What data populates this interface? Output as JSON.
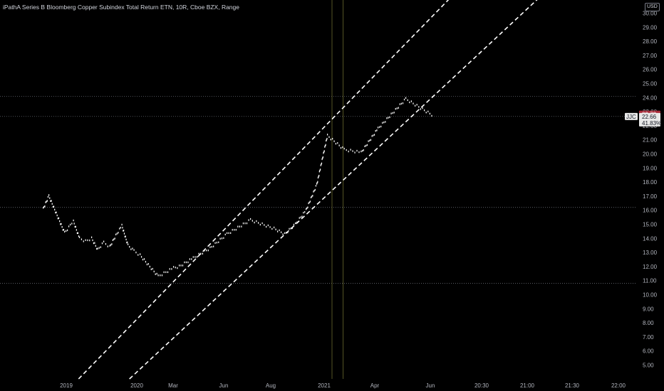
{
  "header": {
    "title": "iPathA Series B Bloomberg Copper Subindex Total Return ETN, 10R, Cboe BZX, Range",
    "currency": "USD"
  },
  "colors": {
    "background": "#000000",
    "price": "#ffffff",
    "channel": "#ffffff",
    "hline": "#787b86",
    "vline": "#6b6a2e",
    "badge_red": "#a62a38",
    "text": "#b2b5be"
  },
  "chart_data": {
    "type": "line",
    "title": "iPathA Series B Bloomberg Copper Subindex Total Return ETN, 10R, Cboe BZX, Range",
    "ylim": [
      4.5,
      30.5
    ],
    "y_ticks": [
      "5.00",
      "6.00",
      "7.00",
      "8.00",
      "9.00",
      "10.00",
      "11.00",
      "12.00",
      "13.00",
      "14.00",
      "15.00",
      "16.00",
      "17.00",
      "18.00",
      "19.00",
      "20.00",
      "21.00",
      "22.00",
      "23.00",
      "24.00",
      "25.00",
      "26.00",
      "27.00",
      "28.00",
      "29.00",
      "30.00"
    ],
    "x_ticks": [
      "2019",
      "2020",
      "Mar",
      "Jun",
      "Aug",
      "2021",
      "Apr",
      "Jun",
      "20:30",
      "21:00",
      "21:30",
      "22:00"
    ],
    "grid": false,
    "series": [
      {
        "symbol": "JJC",
        "style": "range-bricks",
        "x": [
          "2018-12",
          "2018-12",
          "2019-01",
          "2019-01",
          "2019-02",
          "2019-03",
          "2019-04",
          "2019-05",
          "2019-06",
          "2019-07",
          "2019-08",
          "2019-09",
          "2019-10",
          "2019-11",
          "2019-12",
          "2020-01",
          "2020-02",
          "2020-03",
          "2020-03",
          "2020-04",
          "2020-05",
          "2020-06",
          "2020-07",
          "2020-08",
          "2020-09",
          "2020-10",
          "2020-11",
          "2020-12",
          "2021-01",
          "2021-02",
          "2021-03",
          "2021-04",
          "2021-05",
          "2021-06"
        ],
        "y": [
          16.1,
          17.0,
          14.4,
          14.9,
          15.2,
          14.0,
          13.8,
          14.0,
          13.2,
          13.7,
          13.4,
          14.2,
          14.9,
          13.5,
          13.1,
          12.8,
          11.3,
          11.9,
          12.0,
          12.6,
          13.3,
          14.3,
          15.3,
          14.7,
          14.3,
          15.0,
          16.0,
          17.8,
          21.3,
          20.3,
          20.1,
          21.8,
          23.9,
          22.7
        ]
      }
    ],
    "channel": {
      "upper": [
        [
          "2020-03",
          10.9
        ],
        [
          "2021-01",
          21.9
        ]
      ],
      "lower": [
        [
          "2020-01",
          4.5
        ],
        [
          "2021-06",
          23.9
        ]
      ]
    },
    "horizontal_levels": [
      24.1,
      22.66,
      16.2,
      10.8
    ],
    "last_price": {
      "label": "JJC",
      "high": "22.72",
      "value": "22.66",
      "change": "41.83%"
    }
  }
}
